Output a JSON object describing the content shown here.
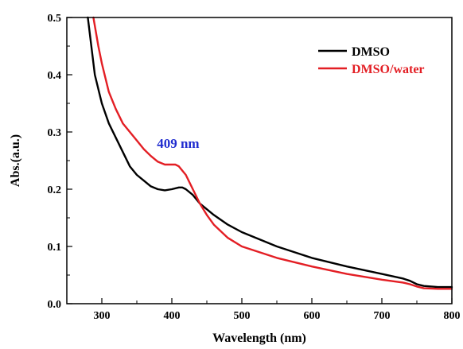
{
  "chart_data": {
    "type": "line",
    "xlabel": "Wavelength (nm)",
    "ylabel": "Abs.(a.u.)",
    "xlim": [
      250,
      800
    ],
    "ylim": [
      0,
      0.5
    ],
    "xticks": [
      300,
      400,
      500,
      600,
      700,
      800
    ],
    "yticks": [
      0.0,
      0.1,
      0.2,
      0.3,
      0.4,
      0.5
    ],
    "xtick_labels": [
      "300",
      "400",
      "500",
      "600",
      "700",
      "800"
    ],
    "ytick_labels": [
      "0.0",
      "0.1",
      "0.2",
      "0.3",
      "0.4",
      "0.5"
    ],
    "grid": false,
    "legend_position": "top-right",
    "annotations": [
      {
        "text": "409 nm",
        "x": 409,
        "y": 0.272,
        "color": "#1f2ccf"
      }
    ],
    "series": [
      {
        "name": "DMSO",
        "color": "#000000",
        "x": [
          280,
          285,
          290,
          300,
          310,
          320,
          330,
          340,
          350,
          360,
          370,
          380,
          390,
          400,
          410,
          415,
          420,
          430,
          440,
          460,
          480,
          500,
          550,
          600,
          650,
          700,
          730,
          740,
          750,
          760,
          780,
          800
        ],
        "y": [
          0.5,
          0.45,
          0.4,
          0.35,
          0.315,
          0.29,
          0.265,
          0.24,
          0.225,
          0.215,
          0.205,
          0.2,
          0.198,
          0.2,
          0.203,
          0.203,
          0.2,
          0.19,
          0.175,
          0.155,
          0.138,
          0.125,
          0.1,
          0.08,
          0.065,
          0.052,
          0.044,
          0.04,
          0.034,
          0.031,
          0.029,
          0.029
        ]
      },
      {
        "name": "DMSO/water",
        "color": "#e31e24",
        "x": [
          288,
          295,
          300,
          310,
          320,
          330,
          340,
          350,
          360,
          370,
          380,
          390,
          400,
          405,
          410,
          420,
          430,
          440,
          450,
          460,
          480,
          500,
          550,
          600,
          650,
          700,
          730,
          740,
          750,
          760,
          780,
          800
        ],
        "y": [
          0.5,
          0.45,
          0.42,
          0.37,
          0.34,
          0.315,
          0.3,
          0.285,
          0.27,
          0.258,
          0.248,
          0.243,
          0.243,
          0.243,
          0.24,
          0.225,
          0.2,
          0.175,
          0.155,
          0.138,
          0.115,
          0.1,
          0.08,
          0.065,
          0.052,
          0.042,
          0.037,
          0.034,
          0.03,
          0.027,
          0.026,
          0.026
        ]
      }
    ]
  }
}
